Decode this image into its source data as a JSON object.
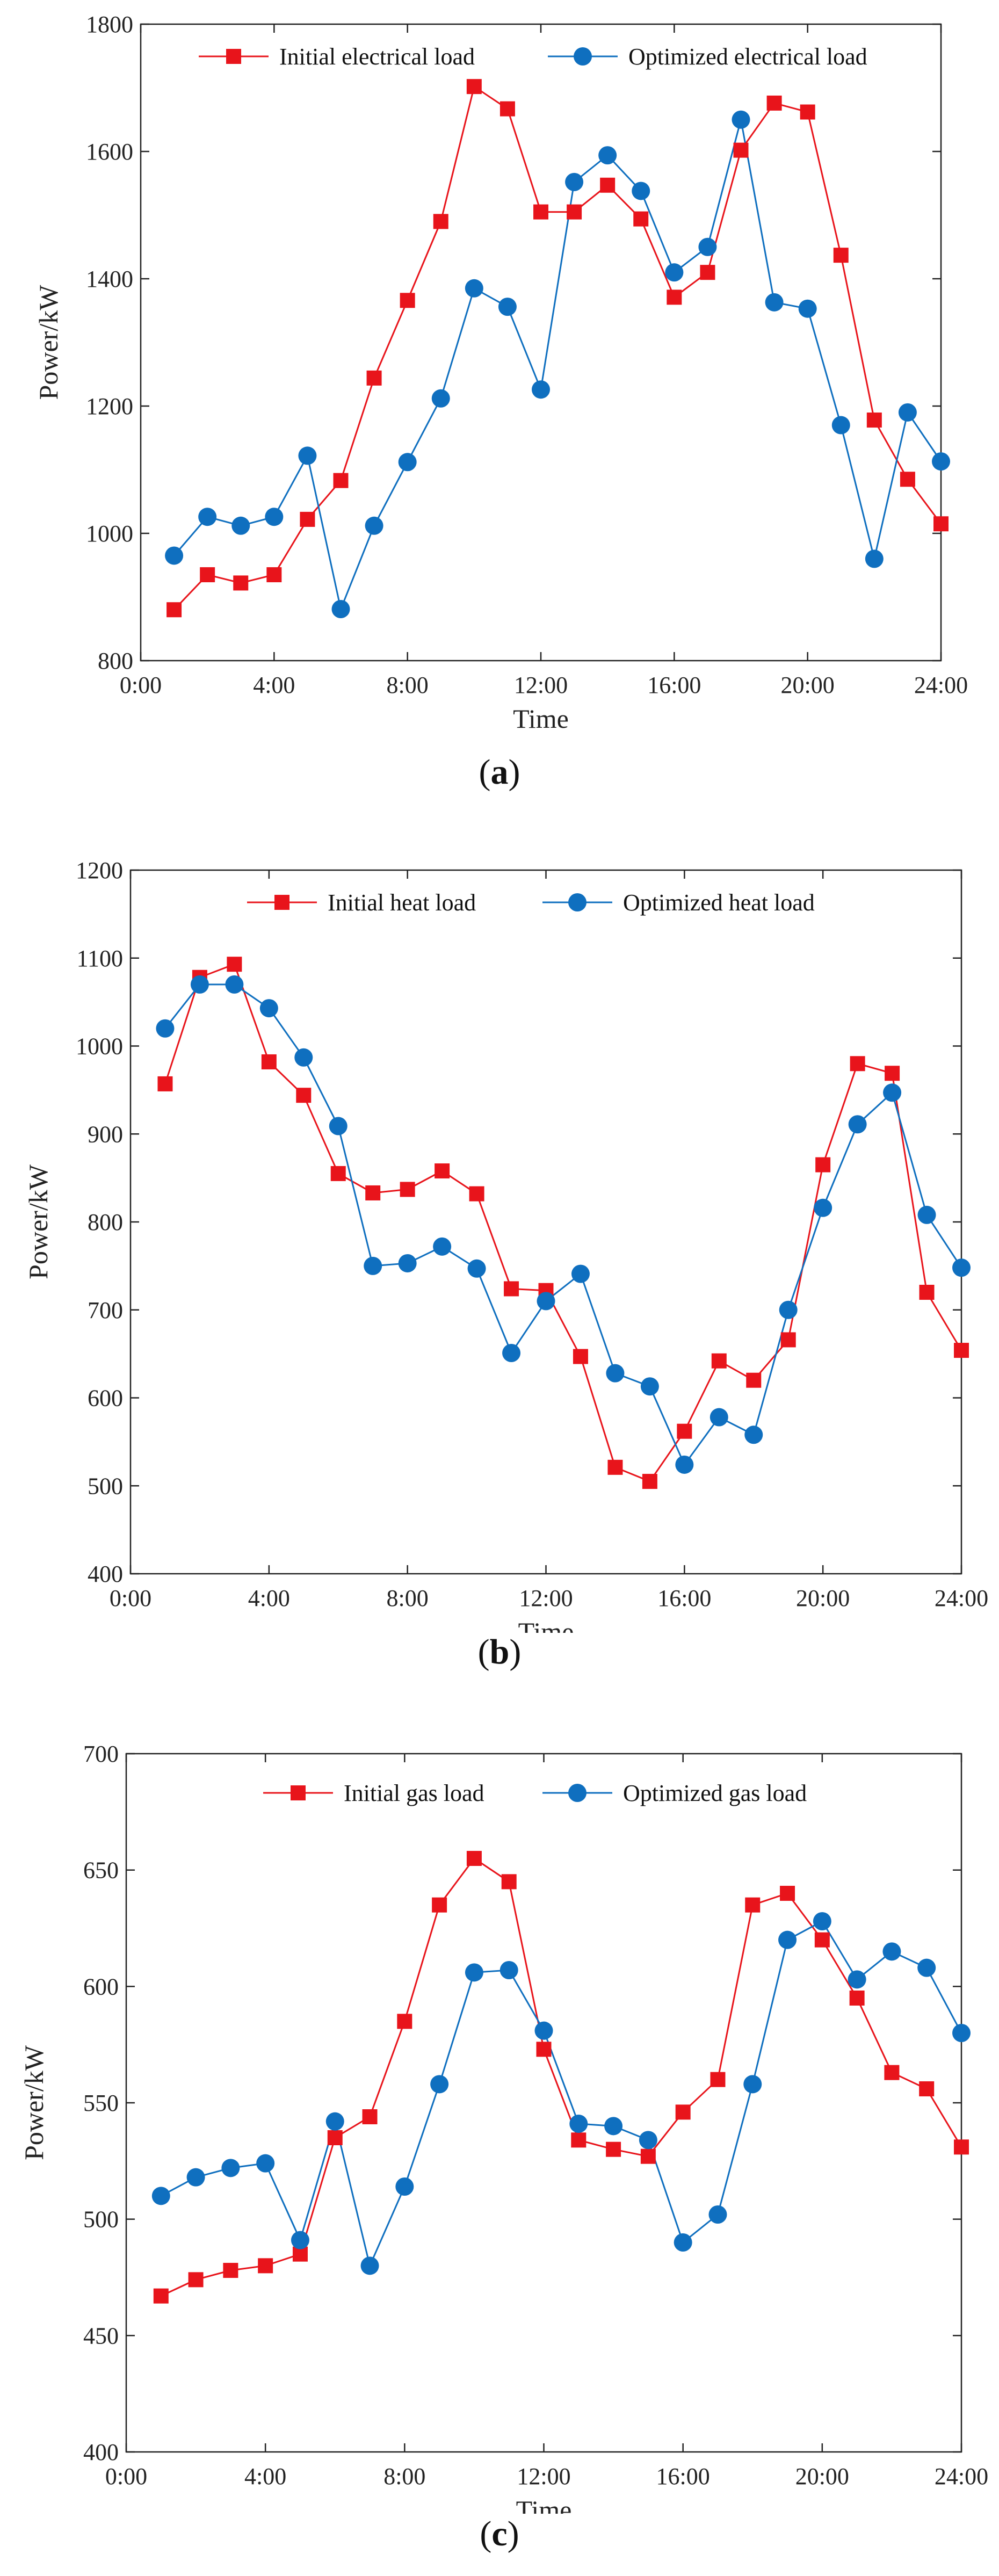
{
  "chart_data": [
    {
      "type": "line",
      "caption_letter": "a",
      "xlabel": "Time",
      "ylabel": "Power/kW",
      "ylim": [
        800,
        1800
      ],
      "yticks": [
        800,
        1000,
        1200,
        1400,
        1600,
        1800
      ],
      "xlim": [
        0,
        24
      ],
      "xticks": [
        0,
        4,
        8,
        12,
        16,
        20,
        24
      ],
      "xtick_labels": [
        "0:00",
        "4:00",
        "8:00",
        "12:00",
        "16:00",
        "20:00",
        "24:00"
      ],
      "x": [
        1,
        2,
        3,
        4,
        5,
        6,
        7,
        8,
        9,
        10,
        11,
        12,
        13,
        14,
        15,
        16,
        17,
        18,
        19,
        20,
        21,
        22,
        23,
        24
      ],
      "legend_position": "top",
      "series": [
        {
          "name": "Initial electrical load",
          "color": "#e8141b",
          "marker": "square",
          "values": [
            880,
            935,
            922,
            935,
            1022,
            1083,
            1244,
            1366,
            1490,
            1702,
            1667,
            1505,
            1505,
            1547,
            1494,
            1371,
            1410,
            1602,
            1676,
            1662,
            1437,
            1178,
            1085,
            1015
          ]
        },
        {
          "name": "Optimized electrical load",
          "color": "#0f6fbf",
          "marker": "circle",
          "values": [
            965,
            1026,
            1012,
            1026,
            1122,
            881,
            1012,
            1112,
            1212,
            1385,
            1356,
            1226,
            1552,
            1594,
            1538,
            1410,
            1450,
            1650,
            1363,
            1353,
            1170,
            960,
            1190,
            1113
          ]
        }
      ]
    },
    {
      "type": "line",
      "caption_letter": "b",
      "xlabel": "Time",
      "ylabel": "Power/kW",
      "ylim": [
        400,
        1200
      ],
      "yticks": [
        400,
        500,
        600,
        700,
        800,
        900,
        1000,
        1100,
        1200
      ],
      "xlim": [
        0,
        24
      ],
      "xticks": [
        0,
        4,
        8,
        12,
        16,
        20,
        24
      ],
      "xtick_labels": [
        "0:00",
        "4:00",
        "8:00",
        "12:00",
        "16:00",
        "20:00",
        "24:00"
      ],
      "x": [
        1,
        2,
        3,
        4,
        5,
        6,
        7,
        8,
        9,
        10,
        11,
        12,
        13,
        14,
        15,
        16,
        17,
        18,
        19,
        20,
        21,
        22,
        23,
        24
      ],
      "legend_position": "top",
      "series": [
        {
          "name": "Initial heat load",
          "color": "#e8141b",
          "marker": "square",
          "values": [
            957,
            1078,
            1093,
            982,
            944,
            855,
            833,
            837,
            858,
            832,
            724,
            722,
            647,
            521,
            505,
            562,
            642,
            620,
            666,
            865,
            980,
            969,
            720,
            654
          ]
        },
        {
          "name": "Optimized heat load",
          "color": "#0f6fbf",
          "marker": "circle",
          "values": [
            1020,
            1070,
            1070,
            1043,
            987,
            909,
            750,
            753,
            772,
            747,
            651,
            710,
            741,
            628,
            613,
            524,
            578,
            558,
            700,
            816,
            911,
            947,
            808,
            748
          ]
        }
      ]
    },
    {
      "type": "line",
      "caption_letter": "c",
      "xlabel": "Time",
      "ylabel": "Power/kW",
      "ylim": [
        400,
        700
      ],
      "yticks": [
        400,
        450,
        500,
        550,
        600,
        650,
        700
      ],
      "xlim": [
        0,
        24
      ],
      "xticks": [
        0,
        4,
        8,
        12,
        16,
        20,
        24
      ],
      "xtick_labels": [
        "0:00",
        "4:00",
        "8:00",
        "12:00",
        "16:00",
        "20:00",
        "24:00"
      ],
      "x": [
        1,
        2,
        3,
        4,
        5,
        6,
        7,
        8,
        9,
        10,
        11,
        12,
        13,
        14,
        15,
        16,
        17,
        18,
        19,
        20,
        21,
        22,
        23,
        24
      ],
      "legend_position": "top",
      "series": [
        {
          "name": "Initial gas load",
          "color": "#e8141b",
          "marker": "square",
          "values": [
            467,
            474,
            478,
            480,
            485,
            535,
            544,
            585,
            635,
            655,
            645,
            573,
            534,
            530,
            527,
            546,
            560,
            635,
            640,
            620,
            595,
            563,
            556,
            531
          ]
        },
        {
          "name": "Optimized gas load",
          "color": "#0f6fbf",
          "marker": "circle",
          "values": [
            510,
            518,
            522,
            524,
            491,
            542,
            480,
            514,
            558,
            606,
            607,
            581,
            541,
            540,
            534,
            490,
            502,
            558,
            620,
            628,
            603,
            615,
            608,
            580
          ]
        }
      ]
    }
  ]
}
